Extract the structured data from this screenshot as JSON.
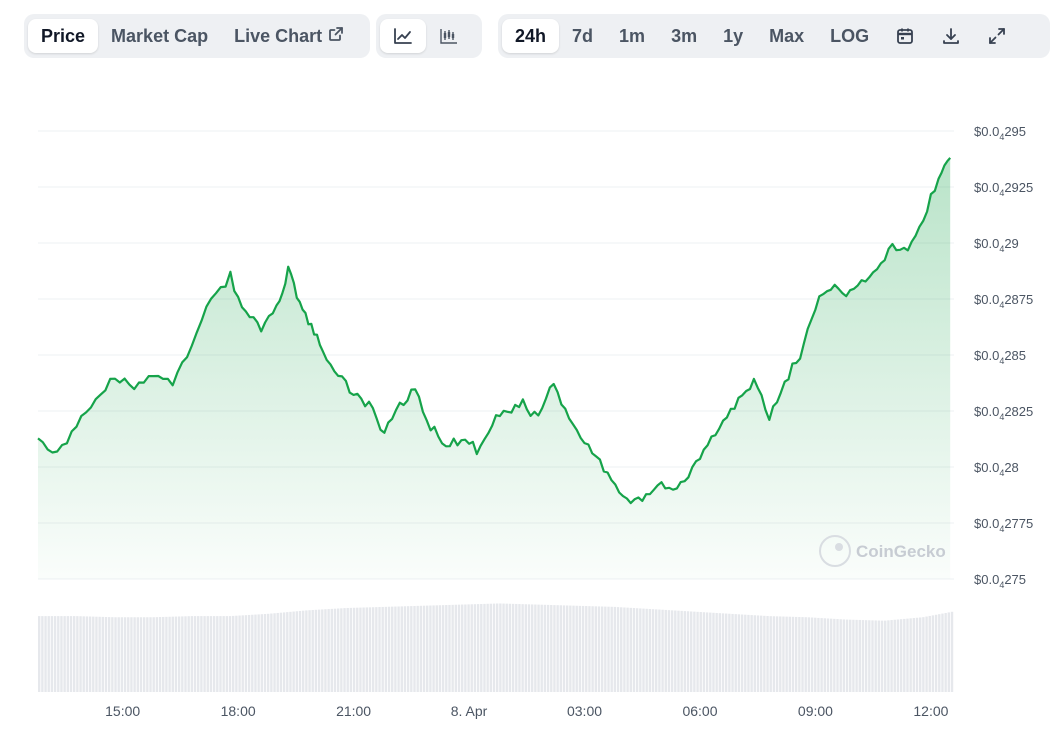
{
  "toolbar": {
    "metric_tabs": [
      {
        "label": "Price",
        "active": true
      },
      {
        "label": "Market Cap",
        "active": false
      },
      {
        "label": "Live Chart",
        "active": false
      }
    ],
    "chart_type_buttons": [
      {
        "icon": "line-chart-icon",
        "active": true
      },
      {
        "icon": "candlestick-chart-icon",
        "active": false
      }
    ],
    "range_tabs": [
      {
        "label": "24h",
        "active": true
      },
      {
        "label": "7d",
        "active": false
      },
      {
        "label": "1m",
        "active": false
      },
      {
        "label": "3m",
        "active": false
      },
      {
        "label": "1y",
        "active": false
      },
      {
        "label": "Max",
        "active": false
      },
      {
        "label": "LOG",
        "active": false
      }
    ],
    "action_icons": [
      "calendar-icon",
      "download-icon",
      "fullscreen-icon"
    ]
  },
  "watermark": "CoinGecko",
  "colors": {
    "line": "#16a34a",
    "area": "#16a34a",
    "volume": "#e6e8ec",
    "grid": "#eef0f3"
  },
  "chart_data": {
    "type": "area",
    "y_tick_labels": [
      {
        "prefix": "$0.0",
        "sub": "4",
        "suffix": "295",
        "value": 2.95e-05
      },
      {
        "prefix": "$0.0",
        "sub": "4",
        "suffix": "2925",
        "value": 2.925e-05
      },
      {
        "prefix": "$0.0",
        "sub": "4",
        "suffix": "29",
        "value": 2.9e-05
      },
      {
        "prefix": "$0.0",
        "sub": "4",
        "suffix": "2875",
        "value": 2.875e-05
      },
      {
        "prefix": "$0.0",
        "sub": "4",
        "suffix": "285",
        "value": 2.85e-05
      },
      {
        "prefix": "$0.0",
        "sub": "4",
        "suffix": "2825",
        "value": 2.825e-05
      },
      {
        "prefix": "$0.0",
        "sub": "4",
        "suffix": "28",
        "value": 2.8e-05
      },
      {
        "prefix": "$0.0",
        "sub": "4",
        "suffix": "2775",
        "value": 2.775e-05
      },
      {
        "prefix": "$0.0",
        "sub": "4",
        "suffix": "275",
        "value": 2.75e-05
      }
    ],
    "ylim": [
      2.75e-05,
      2.95e-05
    ],
    "x_tick_labels": [
      "15:00",
      "18:00",
      "21:00",
      "8. Apr",
      "03:00",
      "06:00",
      "09:00",
      "12:00"
    ],
    "x_tick_hours": [
      15,
      18,
      21,
      24,
      27,
      30,
      33,
      36
    ],
    "xlim_hours": [
      12.8,
      36.6
    ],
    "series": [
      {
        "x_hours": [
          12.8,
          13.3,
          13.8,
          14.3,
          14.8,
          15.3,
          15.8,
          16.3,
          16.8,
          17.3,
          17.8,
          18.2,
          18.6,
          19.0,
          19.3,
          19.6,
          19.9,
          20.2,
          20.6,
          21.0,
          21.4,
          21.8,
          22.2,
          22.6,
          23.0,
          23.4,
          23.8,
          24.2,
          24.6,
          25.0,
          25.4,
          25.8,
          26.2,
          26.6,
          27.0,
          27.4,
          27.8,
          28.2,
          28.6,
          29.0,
          29.4,
          29.8,
          30.2,
          30.6,
          31.0,
          31.4,
          31.8,
          32.2,
          32.6,
          33.0,
          33.4,
          33.8,
          34.2,
          34.6,
          35.0,
          35.4,
          35.8,
          36.2,
          36.5
        ],
        "y_values": [
          2.815e-05,
          2.805e-05,
          2.82e-05,
          2.83e-05,
          2.84e-05,
          2.835e-05,
          2.84e-05,
          2.838e-05,
          2.855e-05,
          2.875e-05,
          2.885e-05,
          2.868e-05,
          2.862e-05,
          2.87e-05,
          2.888e-05,
          2.874e-05,
          2.862e-05,
          2.852e-05,
          2.84e-05,
          2.833e-05,
          2.828e-05,
          2.815e-05,
          2.828e-05,
          2.835e-05,
          2.818e-05,
          2.81e-05,
          2.812e-05,
          2.808e-05,
          2.82e-05,
          2.825e-05,
          2.828e-05,
          2.822e-05,
          2.838e-05,
          2.822e-05,
          2.812e-05,
          2.803e-05,
          2.79e-05,
          2.782e-05,
          2.788e-05,
          2.792e-05,
          2.79e-05,
          2.798e-05,
          2.81e-05,
          2.822e-05,
          2.83e-05,
          2.838e-05,
          2.822e-05,
          2.838e-05,
          2.85e-05,
          2.872e-05,
          2.88e-05,
          2.878e-05,
          2.882e-05,
          2.888e-05,
          2.9e-05,
          2.895e-05,
          2.91e-05,
          2.93e-05,
          2.938e-05
        ]
      }
    ],
    "volume": {
      "x_hours": [
        12.8,
        13.8,
        14.8,
        15.8,
        16.8,
        17.8,
        18.8,
        19.8,
        20.8,
        21.8,
        22.8,
        23.8,
        24.8,
        25.8,
        26.8,
        27.8,
        28.8,
        29.8,
        30.8,
        31.8,
        32.8,
        33.8,
        34.8,
        35.8,
        36.6
      ],
      "values": [
        0.66,
        0.66,
        0.65,
        0.65,
        0.66,
        0.66,
        0.68,
        0.71,
        0.73,
        0.74,
        0.75,
        0.76,
        0.77,
        0.76,
        0.75,
        0.74,
        0.72,
        0.7,
        0.68,
        0.66,
        0.65,
        0.63,
        0.62,
        0.65,
        0.7
      ]
    },
    "grid": true,
    "legend": "none"
  }
}
